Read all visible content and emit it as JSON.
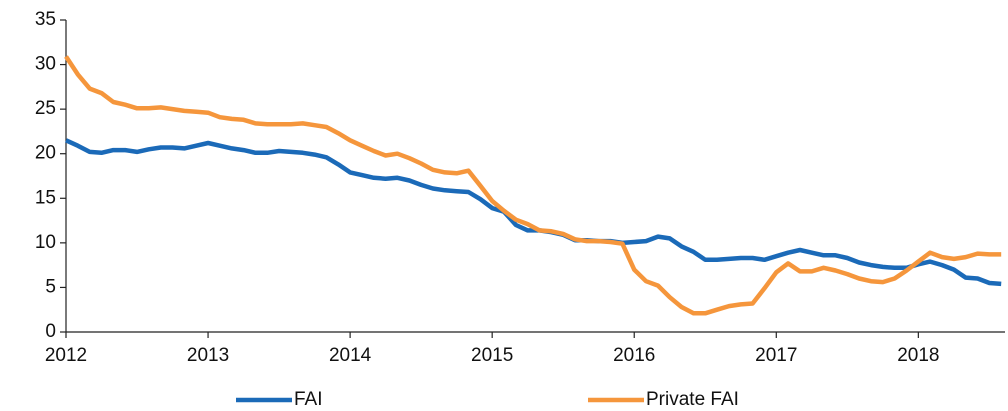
{
  "chart_data": {
    "type": "line",
    "x": [
      2012,
      2012.083,
      2012.167,
      2012.25,
      2012.333,
      2012.417,
      2012.5,
      2012.583,
      2012.667,
      2012.75,
      2012.833,
      2012.917,
      2013,
      2013.083,
      2013.167,
      2013.25,
      2013.333,
      2013.417,
      2013.5,
      2013.583,
      2013.667,
      2013.75,
      2013.833,
      2013.917,
      2014,
      2014.083,
      2014.167,
      2014.25,
      2014.333,
      2014.417,
      2014.5,
      2014.583,
      2014.667,
      2014.75,
      2014.833,
      2014.917,
      2015,
      2015.083,
      2015.167,
      2015.25,
      2015.333,
      2015.417,
      2015.5,
      2015.583,
      2015.667,
      2015.75,
      2015.833,
      2015.917,
      2016,
      2016.083,
      2016.167,
      2016.25,
      2016.333,
      2016.417,
      2016.5,
      2016.583,
      2016.667,
      2016.75,
      2016.833,
      2016.917,
      2017,
      2017.083,
      2017.167,
      2017.25,
      2017.333,
      2017.417,
      2017.5,
      2017.583,
      2017.667,
      2017.75,
      2017.833,
      2017.917,
      2018,
      2018.083,
      2018.167,
      2018.25,
      2018.333,
      2018.417,
      2018.5,
      2018.583
    ],
    "series": [
      {
        "name": "FAI",
        "color": "#1b6ab8",
        "values": [
          21.5,
          20.9,
          20.2,
          20.1,
          20.4,
          20.4,
          20.2,
          20.5,
          20.7,
          20.7,
          20.6,
          20.9,
          21.2,
          20.9,
          20.6,
          20.4,
          20.1,
          20.1,
          20.3,
          20.2,
          20.1,
          19.9,
          19.6,
          18.8,
          17.9,
          17.6,
          17.3,
          17.2,
          17.3,
          17.0,
          16.5,
          16.1,
          15.9,
          15.8,
          15.7,
          14.9,
          13.9,
          13.5,
          12.0,
          11.4,
          11.4,
          11.2,
          10.9,
          10.3,
          10.3,
          10.2,
          10.2,
          10.0,
          10.1,
          10.2,
          10.7,
          10.5,
          9.6,
          9.0,
          8.1,
          8.1,
          8.2,
          8.3,
          8.3,
          8.1,
          8.5,
          8.9,
          9.2,
          8.9,
          8.6,
          8.6,
          8.3,
          7.8,
          7.5,
          7.3,
          7.2,
          7.2,
          7.6,
          7.9,
          7.5,
          7.0,
          6.1,
          6.0,
          5.5,
          5.4
        ]
      },
      {
        "name": "Private FAI",
        "color": "#f5963c",
        "values": [
          30.9,
          28.9,
          27.3,
          26.8,
          25.8,
          25.5,
          25.1,
          25.1,
          25.2,
          25.0,
          24.8,
          24.7,
          24.6,
          24.1,
          23.9,
          23.8,
          23.4,
          23.3,
          23.3,
          23.3,
          23.4,
          23.2,
          23.0,
          22.3,
          21.5,
          20.9,
          20.3,
          19.8,
          20.0,
          19.5,
          18.9,
          18.2,
          17.9,
          17.8,
          18.1,
          16.4,
          14.7,
          13.6,
          12.6,
          12.1,
          11.4,
          11.3,
          11.0,
          10.4,
          10.2,
          10.2,
          10.1,
          9.9,
          7.0,
          5.7,
          5.2,
          3.9,
          2.8,
          2.1,
          2.1,
          2.5,
          2.9,
          3.1,
          3.2,
          4.9,
          6.7,
          7.7,
          6.8,
          6.8,
          7.2,
          6.9,
          6.5,
          6.0,
          5.7,
          5.6,
          6.0,
          6.9,
          7.9,
          8.9,
          8.4,
          8.2,
          8.4,
          8.8,
          8.7,
          8.7
        ]
      }
    ],
    "xlim": [
      2012,
      2018.61
    ],
    "xticks": [
      2012,
      2013,
      2014,
      2015,
      2016,
      2017,
      2018
    ],
    "ylim": [
      0,
      35
    ],
    "yticks": [
      0,
      5,
      10,
      15,
      20,
      25,
      30,
      35
    ],
    "legend": "bottom"
  }
}
